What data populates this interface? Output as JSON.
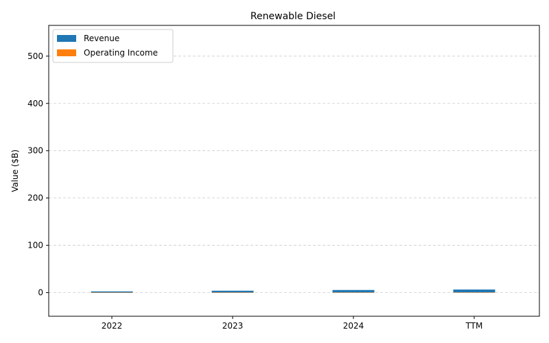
{
  "chart_data": {
    "type": "bar",
    "title": "Renewable Diesel",
    "xlabel": "",
    "ylabel": "Value ($B)",
    "categories": [
      "2022",
      "2023",
      "2024",
      "TTM"
    ],
    "series": [
      {
        "name": "Revenue",
        "color": "#1f77b4",
        "values": [
          2.5,
          4.0,
          5.5,
          6.5
        ]
      },
      {
        "name": "Operating Income",
        "color": "#ff7f0e",
        "values": [
          0.2,
          0.3,
          0.4,
          0.5
        ]
      }
    ],
    "ylim": [
      -50,
      565
    ],
    "yticks": [
      0,
      100,
      200,
      300,
      400,
      500
    ],
    "grid": "y-dashed",
    "legend": "top-left"
  }
}
